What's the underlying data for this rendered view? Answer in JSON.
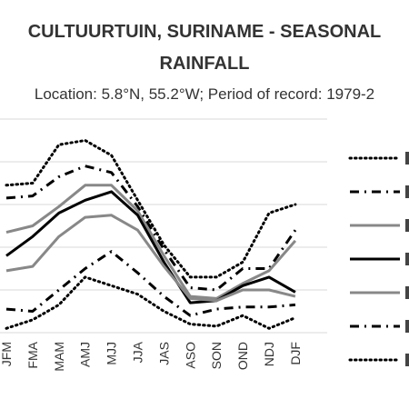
{
  "chart_data": {
    "type": "line",
    "title_lines": [
      "CULTUURTUIN, SURINAME - SEASONAL",
      "RAINFALL"
    ],
    "subtitle": "Location: 5.8°N, 55.2°W; Period of record: 1979-2",
    "categories": [
      "JFM",
      "FMA",
      "MAM",
      "AMJ",
      "MJJ",
      "JJA",
      "JAS",
      "ASO",
      "SON",
      "OND",
      "NDJ",
      "DJF"
    ],
    "xlabel": "",
    "ylabel": "",
    "ylim": [
      0,
      10
    ],
    "grid": true,
    "legend_position": "right",
    "series": [
      {
        "style": "dotted",
        "color": "#000000",
        "values": [
          6.9,
          7.0,
          8.8,
          9.0,
          8.3,
          6.2,
          4.1,
          2.6,
          2.6,
          3.3,
          5.6,
          6.0
        ]
      },
      {
        "style": "dashdot",
        "color": "#000000",
        "values": [
          6.3,
          6.4,
          7.3,
          7.8,
          7.5,
          5.9,
          3.9,
          2.1,
          2.0,
          3.0,
          3.0,
          4.8
        ]
      },
      {
        "style": "solid",
        "color": "#888888",
        "values": [
          4.7,
          5.0,
          5.9,
          6.9,
          6.9,
          5.7,
          3.6,
          1.7,
          1.6,
          2.3,
          2.9,
          4.3
        ]
      },
      {
        "style": "solid",
        "color": "#000000",
        "values": [
          3.6,
          4.5,
          5.6,
          6.2,
          6.6,
          5.5,
          3.3,
          1.4,
          1.5,
          2.2,
          2.6,
          1.9
        ]
      },
      {
        "style": "solid",
        "color": "#888888",
        "values": [
          2.9,
          3.1,
          4.5,
          5.4,
          5.5,
          4.8,
          3.1,
          1.6,
          1.5,
          2.0,
          2.0,
          1.7
        ]
      },
      {
        "style": "dashdot",
        "color": "#000000",
        "values": [
          1.1,
          1.0,
          2.0,
          3.0,
          3.8,
          2.8,
          1.7,
          0.8,
          1.1,
          1.2,
          1.2,
          1.3
        ]
      },
      {
        "style": "dotted",
        "color": "#000000",
        "values": [
          0.2,
          0.6,
          1.3,
          2.6,
          2.2,
          1.8,
          1.0,
          0.4,
          0.3,
          0.8,
          0.2,
          0.7
        ]
      }
    ]
  }
}
